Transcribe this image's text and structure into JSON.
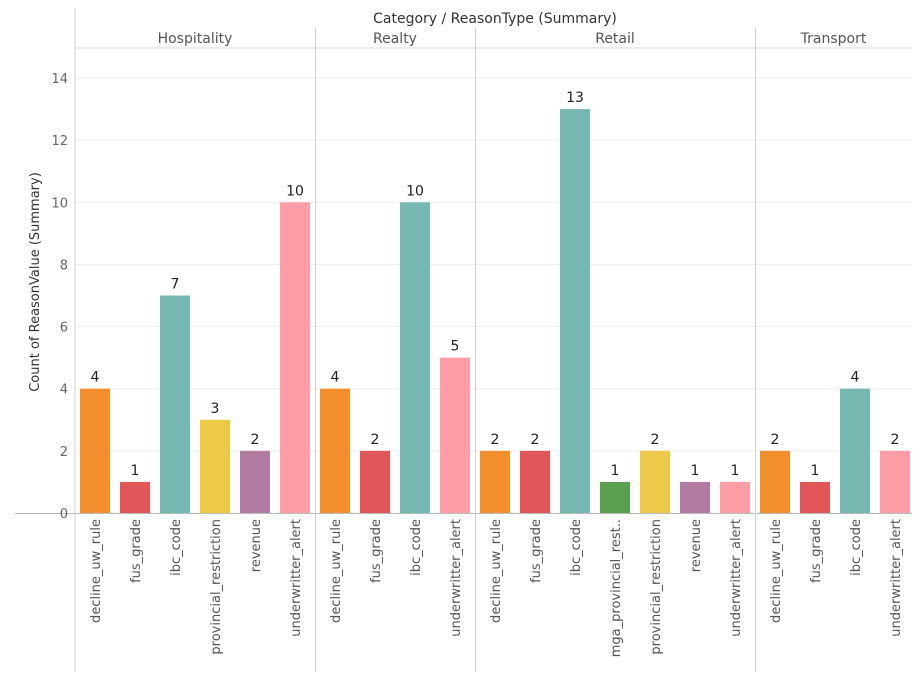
{
  "chart_data": {
    "type": "bar",
    "title": "Category / ReasonType (Summary)",
    "ylabel": "Count of ReasonValue (Summary)",
    "xlabel": "",
    "ylim": [
      0,
      14.5
    ],
    "yticks": [
      0,
      2,
      4,
      6,
      8,
      10,
      12,
      14
    ],
    "grid": true,
    "legend": "none",
    "reason_colors": {
      "decline_uw_rule": "#f28e2b",
      "fus_grade": "#e15759",
      "ibc_code": "#76b7b2",
      "provincial_restriction": "#edc948",
      "revenue": "#b07aa1",
      "underwritter_alert": "#ff9da7",
      "mga_provincial_rest..": "#59a14f"
    },
    "groups": [
      {
        "category": "Hospitality",
        "bars": [
          {
            "reason": "decline_uw_rule",
            "value": 4
          },
          {
            "reason": "fus_grade",
            "value": 1
          },
          {
            "reason": "ibc_code",
            "value": 7
          },
          {
            "reason": "provincial_restriction",
            "value": 3
          },
          {
            "reason": "revenue",
            "value": 2
          },
          {
            "reason": "underwritter_alert",
            "value": 10
          }
        ]
      },
      {
        "category": "Realty",
        "bars": [
          {
            "reason": "decline_uw_rule",
            "value": 4
          },
          {
            "reason": "fus_grade",
            "value": 2
          },
          {
            "reason": "ibc_code",
            "value": 10
          },
          {
            "reason": "underwritter_alert",
            "value": 5
          }
        ]
      },
      {
        "category": "Retail",
        "bars": [
          {
            "reason": "decline_uw_rule",
            "value": 2
          },
          {
            "reason": "fus_grade",
            "value": 2
          },
          {
            "reason": "ibc_code",
            "value": 13
          },
          {
            "reason": "mga_provincial_rest..",
            "value": 1
          },
          {
            "reason": "provincial_restriction",
            "value": 2
          },
          {
            "reason": "revenue",
            "value": 1
          },
          {
            "reason": "underwritter_alert",
            "value": 1
          }
        ]
      },
      {
        "category": "Transport",
        "bars": [
          {
            "reason": "decline_uw_rule",
            "value": 2
          },
          {
            "reason": "fus_grade",
            "value": 1
          },
          {
            "reason": "ibc_code",
            "value": 4
          },
          {
            "reason": "underwritter_alert",
            "value": 2
          }
        ]
      }
    ]
  }
}
